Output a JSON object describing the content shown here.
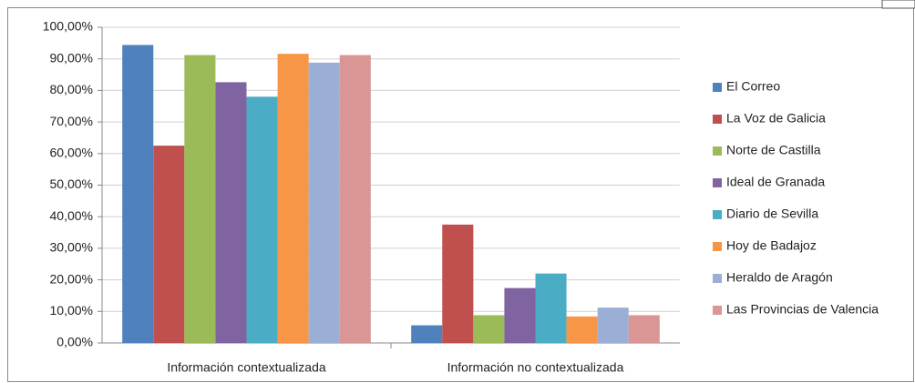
{
  "chart_data": {
    "type": "bar",
    "categories": [
      "Información contextualizada",
      "Información no contextualizada"
    ],
    "series": [
      {
        "name": "El Correo",
        "color": "#4f81bd",
        "values": [
          94.4,
          5.6
        ]
      },
      {
        "name": "La Voz de Galicia",
        "color": "#c0504d",
        "values": [
          62.5,
          37.5
        ]
      },
      {
        "name": "Norte de Castilla",
        "color": "#9bbb59",
        "values": [
          91.2,
          8.8
        ]
      },
      {
        "name": "Ideal de Granada",
        "color": "#8064a2",
        "values": [
          82.6,
          17.4
        ]
      },
      {
        "name": "Diario de Sevilla",
        "color": "#4bacc6",
        "values": [
          78,
          22
        ]
      },
      {
        "name": "Hoy de Badajoz",
        "color": "#f79646",
        "values": [
          91.6,
          8.4
        ]
      },
      {
        "name": "Heraldo de Aragón",
        "color": "#9aaed6",
        "values": [
          88.8,
          11.2
        ]
      },
      {
        "name": "Las Provincias de Valencia",
        "color": "#d99694",
        "values": [
          91.2,
          8.8
        ]
      }
    ],
    "ylim": [
      0,
      100
    ],
    "yticks": [
      {
        "value": 0,
        "label": "0,00%"
      },
      {
        "value": 10,
        "label": "10,00%"
      },
      {
        "value": 20,
        "label": "20,00%"
      },
      {
        "value": 30,
        "label": "30,00%"
      },
      {
        "value": 40,
        "label": "40,00%"
      },
      {
        "value": 50,
        "label": "50,00%"
      },
      {
        "value": 60,
        "label": "60,00%"
      },
      {
        "value": 70,
        "label": "70,00%"
      },
      {
        "value": 80,
        "label": "80,00%"
      },
      {
        "value": 90,
        "label": "90,00%"
      },
      {
        "value": 100,
        "label": "100,00%"
      }
    ],
    "grid": true,
    "legend": "right"
  }
}
